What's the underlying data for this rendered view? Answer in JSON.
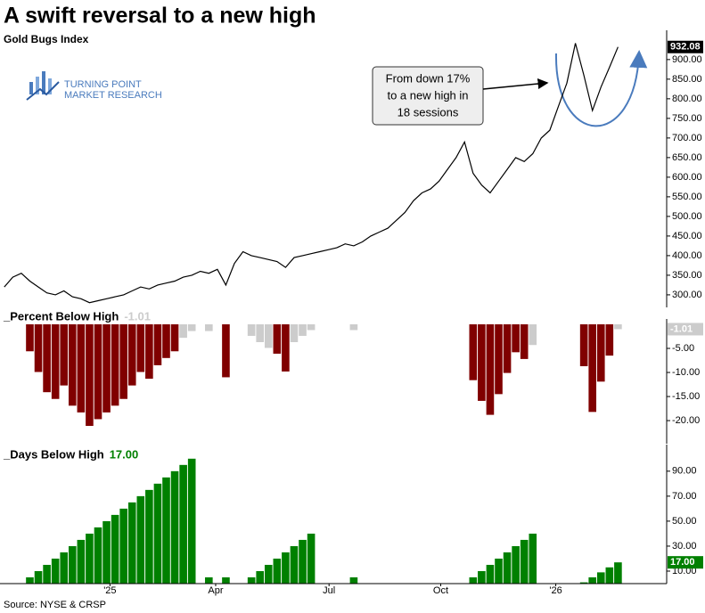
{
  "title": "A swift reversal to a new high",
  "source": "Source: NYSE & CRSP",
  "logo": [
    "TURNING POINT",
    "MARKET RESEARCH"
  ],
  "annotation": [
    "From down 17%",
    "to a new high in",
    "18 sessions"
  ],
  "chart_data": [
    {
      "type": "line",
      "title": "Gold Bugs Index",
      "color": "#000000",
      "label_box_color": "#000000",
      "values": [
        320,
        345,
        355,
        335,
        320,
        305,
        300,
        310,
        295,
        290,
        280,
        285,
        290,
        295,
        300,
        310,
        320,
        315,
        325,
        330,
        335,
        345,
        350,
        360,
        355,
        365,
        325,
        380,
        410,
        400,
        395,
        390,
        385,
        370,
        395,
        400,
        405,
        410,
        415,
        420,
        430,
        425,
        435,
        450,
        460,
        470,
        490,
        510,
        540,
        560,
        570,
        590,
        620,
        650,
        690,
        610,
        580,
        560,
        590,
        620,
        650,
        640,
        660,
        700,
        720,
        780,
        840,
        941.6,
        860,
        770,
        830,
        880,
        932.08
      ],
      "xlim": [
        -0.5,
        77.5
      ],
      "ylim": [
        268,
        961
      ],
      "yticks": [
        {
          "value": 300,
          "label": "300.00"
        },
        {
          "value": 350,
          "label": "350.00"
        },
        {
          "value": 400,
          "label": "400.00"
        },
        {
          "value": 450,
          "label": "450.00"
        },
        {
          "value": 500,
          "label": "500.00"
        },
        {
          "value": 550,
          "label": "550.00"
        },
        {
          "value": 600,
          "label": "600.00"
        },
        {
          "value": 650,
          "label": "650.00"
        },
        {
          "value": 700,
          "label": "700.00"
        },
        {
          "value": 750,
          "label": "750.00"
        },
        {
          "value": 800,
          "label": "800.00"
        },
        {
          "value": 850,
          "label": "850.00"
        },
        {
          "value": 900,
          "label": "900.00"
        }
      ]
    },
    {
      "type": "bar",
      "title": "_Percent Below High",
      "color": "#800000",
      "light_color": "#cccccc",
      "label_box_color": "#cccccc",
      "values": [
        0,
        0,
        0,
        -5.6,
        -9.9,
        -14.1,
        -15.5,
        -12.7,
        -16.9,
        -18.3,
        -21.1,
        -19.7,
        -18.3,
        -16.9,
        -15.5,
        -12.7,
        -9.9,
        -11.3,
        -8.5,
        -7,
        -5.6,
        -2.8,
        -1.4,
        0,
        -1.4,
        0,
        -11,
        0,
        0,
        -2.4,
        -3.7,
        -4.9,
        -6.1,
        -9.8,
        -3.7,
        -2.4,
        -1.2,
        0,
        0,
        0,
        0,
        -1.2,
        0,
        0,
        0,
        0,
        0,
        0,
        0,
        0,
        0,
        0,
        0,
        0,
        0,
        -11.6,
        -15.9,
        -18.8,
        -14.5,
        -10.1,
        -5.8,
        -7.2,
        -4.3,
        0,
        0,
        0,
        0,
        0,
        -8.7,
        -18.2,
        -11.9,
        -6.5,
        -1.01
      ],
      "xlim": [
        -0.5,
        77.5
      ],
      "ylim": [
        -24.8,
        0
      ],
      "yticks": [
        {
          "value": -5,
          "label": "-5.00"
        },
        {
          "value": -10,
          "label": "-10.00"
        },
        {
          "value": -15,
          "label": "-15.00"
        },
        {
          "value": -20,
          "label": "-20.00"
        }
      ]
    },
    {
      "type": "bar",
      "title": "_Days Below High",
      "color": "#008000",
      "label_box_color": "#008000",
      "values": [
        0,
        0,
        0,
        5,
        10,
        15,
        20,
        25,
        30,
        35,
        40,
        45,
        50,
        55,
        60,
        65,
        70,
        75,
        80,
        85,
        90,
        95,
        100,
        0,
        5,
        0,
        5,
        0,
        0,
        5,
        10,
        15,
        20,
        25,
        30,
        35,
        40,
        0,
        0,
        0,
        0,
        5,
        0,
        0,
        0,
        0,
        0,
        0,
        0,
        0,
        0,
        0,
        0,
        0,
        0,
        5,
        10,
        15,
        20,
        25,
        30,
        35,
        40,
        0,
        0,
        0,
        0,
        0,
        1,
        5,
        9,
        13,
        17
      ],
      "value_labels": [
        null,
        null,
        null,
        null,
        null,
        null,
        null,
        null,
        null,
        null,
        null,
        null,
        null,
        null,
        null,
        null,
        null,
        null,
        null,
        null,
        null,
        null,
        null,
        null,
        null,
        null,
        null,
        null,
        null,
        null,
        null,
        null,
        null,
        null,
        null,
        null,
        null,
        null,
        null,
        null,
        null,
        null,
        null,
        null,
        null,
        null,
        null,
        null,
        null,
        null,
        null,
        null,
        null,
        null,
        null,
        null,
        null,
        null,
        null,
        null,
        null,
        null,
        null,
        null,
        null,
        null,
        null,
        null,
        null,
        null,
        null,
        null,
        "17.00"
      ],
      "xlim": [
        -0.5,
        77.5
      ],
      "ylim": [
        0,
        107
      ],
      "yticks": [
        {
          "value": 10,
          "label": "10.00"
        },
        {
          "value": 30,
          "label": "30.00"
        },
        {
          "value": 50,
          "label": "50.00"
        },
        {
          "value": 70,
          "label": "70.00"
        },
        {
          "value": 90,
          "label": "90.00"
        }
      ],
      "xticks": [
        {
          "value": 12.4,
          "label": "'25"
        },
        {
          "value": 24.8,
          "label": "Apr"
        },
        {
          "value": 38.1,
          "label": "Jul"
        },
        {
          "value": 51.2,
          "label": "Oct"
        },
        {
          "value": 64.7,
          "label": "'26"
        }
      ]
    }
  ]
}
